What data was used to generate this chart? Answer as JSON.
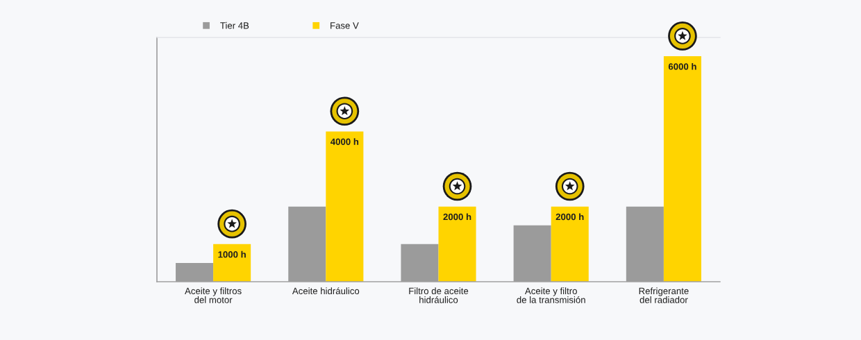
{
  "chart_data": {
    "type": "bar",
    "categories": [
      "Aceite y filtros\ndel motor",
      "Aceite hidráulico",
      "Filtro de aceite\nhidráulico",
      "Aceite y filtro\nde la transmisión",
      "Refrigerante\ndel radiador"
    ],
    "series": [
      {
        "name": "Tier 4B",
        "color": "#9b9b9b",
        "values": [
          500,
          2000,
          1000,
          1500,
          2000
        ]
      },
      {
        "name": "Fase V",
        "color": "#ffd400",
        "values": [
          1000,
          4000,
          2000,
          2000,
          6000
        ],
        "value_labels": [
          "1000 h",
          "4000 h",
          "2000 h",
          "2000 h",
          "6000 h"
        ]
      }
    ],
    "ylim": [
      0,
      6500
    ],
    "tick_labels": "x",
    "legend": "top left"
  }
}
